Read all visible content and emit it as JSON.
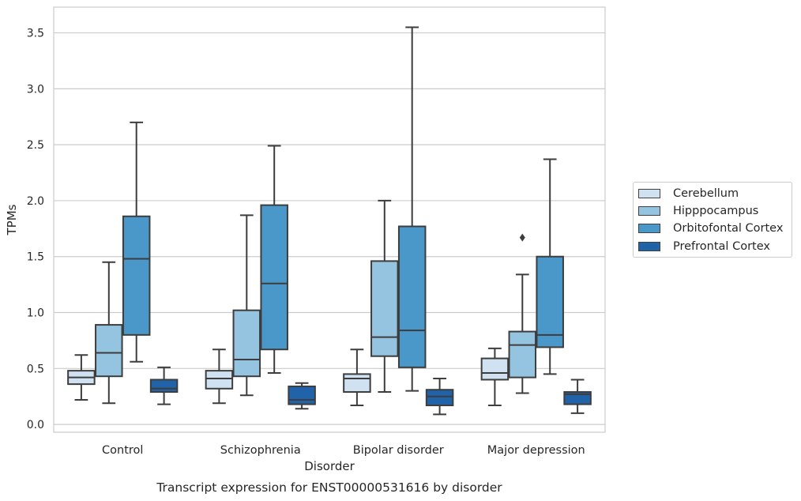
{
  "chart_data": {
    "type": "boxplot",
    "title": "Transcript expression for ENST00000531616 by disorder",
    "xlabel": "Disorder",
    "ylabel": "TPMs",
    "ylim": [
      -0.07,
      3.73
    ],
    "yticks": [
      "0.0",
      "0.5",
      "1.0",
      "1.5",
      "2.0",
      "2.5",
      "3.0",
      "3.5"
    ],
    "grid": true,
    "legend_placement": "right",
    "categories": [
      "Control",
      "Schizophrenia",
      "Bipolar disorder",
      "Major depression"
    ],
    "series": [
      {
        "name": "Cerebellum",
        "color": "#d0e1f2",
        "boxes": [
          {
            "whislo": 0.22,
            "q1": 0.36,
            "med": 0.42,
            "q3": 0.48,
            "whishi": 0.62,
            "fliers": []
          },
          {
            "whislo": 0.19,
            "q1": 0.32,
            "med": 0.41,
            "q3": 0.48,
            "whishi": 0.67,
            "fliers": []
          },
          {
            "whislo": 0.17,
            "q1": 0.29,
            "med": 0.41,
            "q3": 0.45,
            "whishi": 0.67,
            "fliers": []
          },
          {
            "whislo": 0.17,
            "q1": 0.4,
            "med": 0.46,
            "q3": 0.59,
            "whishi": 0.68,
            "fliers": []
          }
        ]
      },
      {
        "name": "Hipppocampus",
        "color": "#94c4df",
        "boxes": [
          {
            "whislo": 0.19,
            "q1": 0.43,
            "med": 0.64,
            "q3": 0.89,
            "whishi": 1.45,
            "fliers": []
          },
          {
            "whislo": 0.26,
            "q1": 0.43,
            "med": 0.58,
            "q3": 1.02,
            "whishi": 1.87,
            "fliers": []
          },
          {
            "whislo": 0.29,
            "q1": 0.61,
            "med": 0.78,
            "q3": 1.46,
            "whishi": 2.0,
            "fliers": []
          },
          {
            "whislo": 0.28,
            "q1": 0.42,
            "med": 0.71,
            "q3": 0.83,
            "whishi": 1.34,
            "fliers": [
              1.67
            ]
          }
        ]
      },
      {
        "name": "Orbitofontal Cortex",
        "color": "#4a98c9",
        "boxes": [
          {
            "whislo": 0.56,
            "q1": 0.8,
            "med": 1.48,
            "q3": 1.86,
            "whishi": 2.7,
            "fliers": []
          },
          {
            "whislo": 0.46,
            "q1": 0.67,
            "med": 1.26,
            "q3": 1.96,
            "whishi": 2.49,
            "fliers": []
          },
          {
            "whislo": 0.3,
            "q1": 0.51,
            "med": 0.84,
            "q3": 1.77,
            "whishi": 3.55,
            "fliers": []
          },
          {
            "whislo": 0.45,
            "q1": 0.69,
            "med": 0.8,
            "q3": 1.5,
            "whishi": 2.37,
            "fliers": []
          }
        ]
      },
      {
        "name": "Prefrontal Cortex",
        "color": "#2163a9",
        "boxes": [
          {
            "whislo": 0.18,
            "q1": 0.29,
            "med": 0.32,
            "q3": 0.4,
            "whishi": 0.51,
            "fliers": []
          },
          {
            "whislo": 0.14,
            "q1": 0.18,
            "med": 0.22,
            "q3": 0.34,
            "whishi": 0.37,
            "fliers": []
          },
          {
            "whislo": 0.09,
            "q1": 0.17,
            "med": 0.25,
            "q3": 0.31,
            "whishi": 0.41,
            "fliers": []
          },
          {
            "whislo": 0.1,
            "q1": 0.18,
            "med": 0.27,
            "q3": 0.29,
            "whishi": 0.4,
            "fliers": []
          }
        ]
      }
    ]
  }
}
